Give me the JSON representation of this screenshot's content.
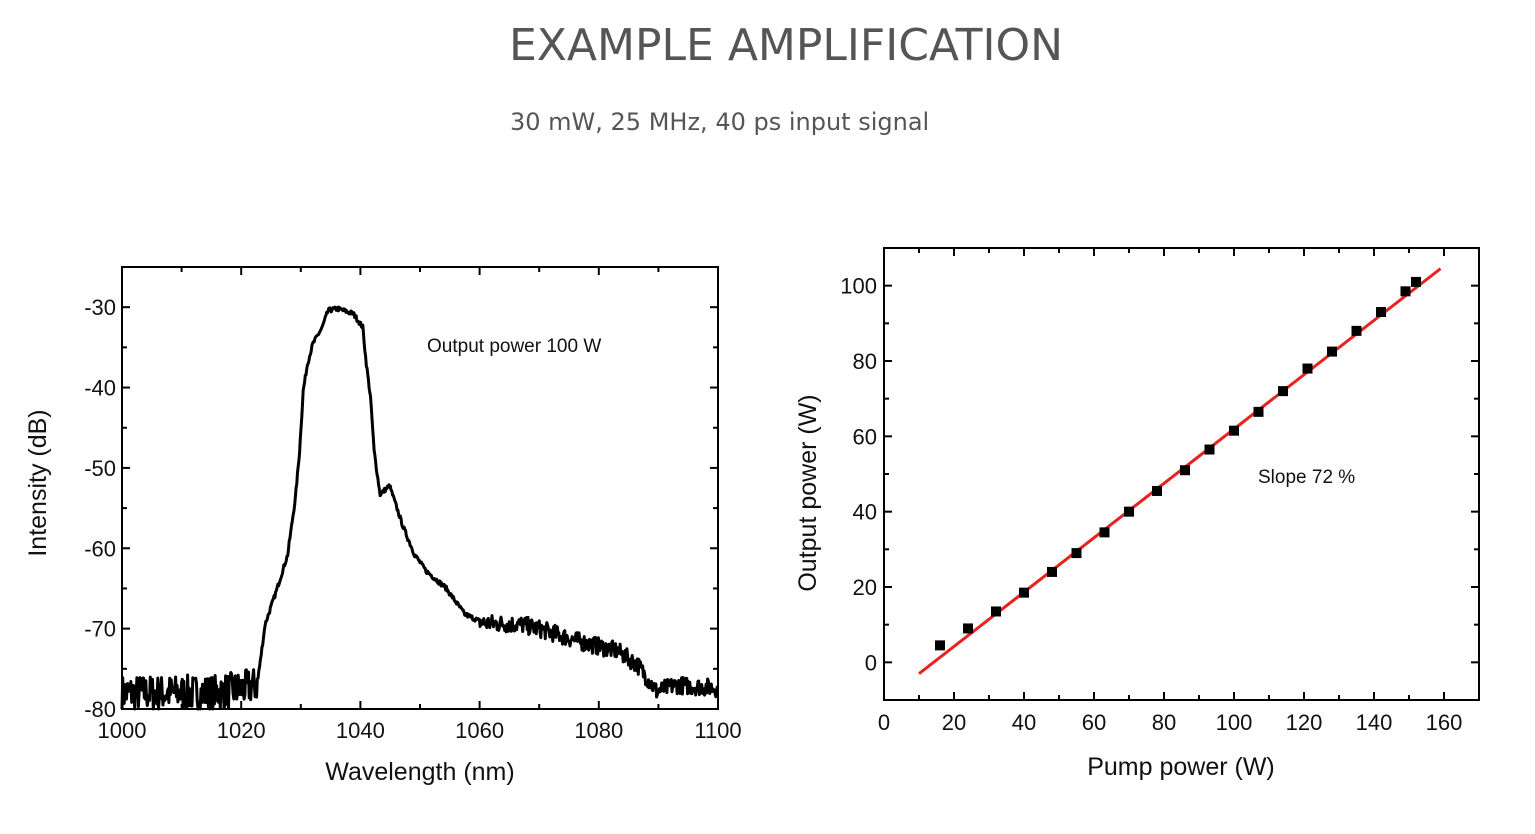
{
  "header": {
    "title": "EXAMPLE AMPLIFICATION",
    "subtitle": "30 mW, 25 MHz, 40 ps input signal"
  },
  "chart_data": [
    {
      "type": "line",
      "xlabel": "Wavelength (nm)",
      "ylabel": "Intensity (dB)",
      "annotation": "Output power 100 W",
      "xlim": [
        1000,
        1100
      ],
      "ylim": [
        -80,
        -25
      ],
      "xticks": [
        1000,
        1020,
        1040,
        1060,
        1080,
        1100
      ],
      "yticks": [
        -30,
        -40,
        -50,
        -60,
        -70,
        -80
      ],
      "grid": false,
      "line_color": "#000000",
      "series": [
        {
          "x": [
            1000,
            1005,
            1010,
            1015,
            1020,
            1022.7,
            1024.0,
            1025.9,
            1027.8,
            1029.1,
            1029.8,
            1030.4,
            1031.1,
            1032.0,
            1033.6,
            1034.6,
            1036.2,
            1038.8,
            1040.4,
            1041.0,
            1041.7,
            1042.3,
            1043.3,
            1044.9,
            1045.9,
            1047.2,
            1049.1,
            1051.0,
            1054.3,
            1057.5,
            1060.7,
            1067.1,
            1070.4,
            1076.8,
            1083.2,
            1086.5,
            1089.7,
            1092.9,
            1100
          ],
          "y": [
            -78,
            -78,
            -78,
            -78,
            -77.5,
            -77,
            -69.5,
            -65.3,
            -60.8,
            -53.7,
            -47.9,
            -40.4,
            -37.1,
            -34.6,
            -32.5,
            -30.4,
            -30.2,
            -30.8,
            -32.5,
            -37.1,
            -41.2,
            -47.9,
            -53.3,
            -52.2,
            -54.5,
            -57.4,
            -60.8,
            -62.8,
            -64.9,
            -68.2,
            -69.3,
            -69.5,
            -70.1,
            -71.6,
            -72.8,
            -74.5,
            -77.8,
            -77,
            -77.4
          ]
        }
      ]
    },
    {
      "type": "scatter",
      "xlabel": "Pump power (W)",
      "ylabel": "Output power (W)",
      "annotation": "Slope 72 %",
      "xlim": [
        0,
        170
      ],
      "ylim": [
        -10,
        110
      ],
      "xticks": [
        0,
        20,
        40,
        60,
        80,
        100,
        120,
        140,
        160
      ],
      "yticks": [
        0,
        20,
        40,
        60,
        80,
        100
      ],
      "grid": false,
      "marker_color": "#000000",
      "fit_color": "#e8231f",
      "series": [
        {
          "x": [
            16,
            24,
            32,
            40,
            48,
            55,
            63,
            70,
            78,
            86,
            93,
            100,
            107,
            114,
            121,
            128,
            135,
            142,
            149,
            152
          ],
          "y": [
            4.5,
            9,
            13.5,
            18.5,
            24,
            29,
            34.5,
            40,
            45.5,
            51,
            56.5,
            61.5,
            66.5,
            72,
            78,
            82.5,
            88,
            93,
            98.5,
            101
          ]
        }
      ],
      "fit": {
        "x": [
          10,
          159
        ],
        "y": [
          -3,
          104.5
        ],
        "slope": 0.72
      }
    }
  ]
}
